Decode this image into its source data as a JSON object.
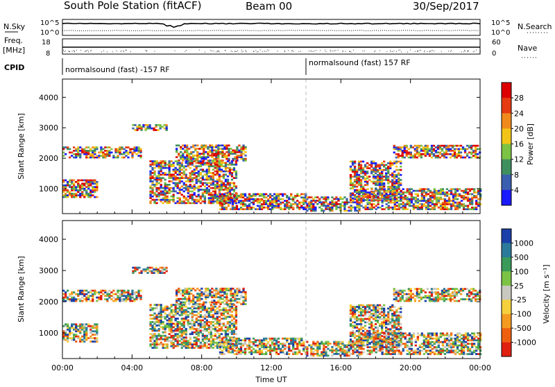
{
  "header": {
    "station": "South Pole Station (fitACF)",
    "beam": "Beam 00",
    "date": "30/Sep/2017"
  },
  "params": {
    "nsky_label": "N.Sky",
    "nsky_ticks": [
      "10^5",
      "10^0"
    ],
    "nsearch_label": "N.Search",
    "nsearch_ticks": [
      "10^5",
      "10^0"
    ],
    "freq_label": "Freq.",
    "freq_unit": "[MHz]",
    "freq_ticks": [
      "18",
      "8"
    ],
    "nave_label": "Nave",
    "nave_ticks": [
      "60",
      "0"
    ],
    "cpid_label": "CPID",
    "cpid_segments": [
      {
        "label": "normalsound (fast) -157 RF",
        "start_hour": 0
      },
      {
        "label": "normalsound (fast) 157 RF",
        "start_hour": 14
      }
    ]
  },
  "chart_data": [
    {
      "type": "heatmap",
      "name": "power",
      "xlabel": "",
      "ylabel": "Slant Range [km]",
      "xlim": [
        0,
        24
      ],
      "ylim": [
        180,
        4600
      ],
      "y_ticks": [
        "1000",
        "2000",
        "3000",
        "4000"
      ],
      "colorbar_label": "Power [dB]",
      "colorbar_ticks": [
        "4",
        "8",
        "12",
        "16",
        "20",
        "24",
        "28"
      ],
      "colorbar_range": [
        0,
        30
      ],
      "colors": [
        "#1a1aff",
        "#3a5fb0",
        "#3f8f5e",
        "#7cc244",
        "#f2c417",
        "#f08a1c",
        "#e53a12",
        "#dd0000"
      ],
      "echo_regions": [
        {
          "t0": 0.0,
          "t1": 4.5,
          "r0": 2000,
          "r1": 2350
        },
        {
          "t0": 4.0,
          "t1": 6.0,
          "r0": 2900,
          "r1": 3100
        },
        {
          "t0": 6.5,
          "t1": 10.5,
          "r0": 1900,
          "r1": 2400
        },
        {
          "t0": 0.0,
          "t1": 2.0,
          "r0": 700,
          "r1": 1300
        },
        {
          "t0": 5.0,
          "t1": 10.0,
          "r0": 500,
          "r1": 1900
        },
        {
          "t0": 9.0,
          "t1": 14.0,
          "r0": 300,
          "r1": 800
        },
        {
          "t0": 14.0,
          "t1": 17.0,
          "r0": 250,
          "r1": 700
        },
        {
          "t0": 16.5,
          "t1": 19.5,
          "r0": 600,
          "r1": 1900
        },
        {
          "t0": 17.0,
          "t1": 24.0,
          "r0": 300,
          "r1": 1000
        },
        {
          "t0": 19.0,
          "t1": 24.0,
          "r0": 2000,
          "r1": 2400
        }
      ]
    },
    {
      "type": "heatmap",
      "name": "velocity",
      "xlabel": "Time UT",
      "ylabel": "Slant Range [km]",
      "xlim": [
        0,
        24
      ],
      "ylim": [
        180,
        4600
      ],
      "x_ticks": [
        "00:00",
        "04:00",
        "08:00",
        "12:00",
        "16:00",
        "20:00",
        "00:00"
      ],
      "y_ticks": [
        "1000",
        "2000",
        "3000",
        "4000"
      ],
      "colorbar_label": "Velocity [m s⁻¹]",
      "colorbar_ticks": [
        "1000",
        "500",
        "100",
        "25",
        "-25",
        "-100",
        "-500",
        "-1000"
      ],
      "colors": [
        "#1a3fa8",
        "#2c7a9a",
        "#3a9a5a",
        "#7cc244",
        "#c8c8c0",
        "#f5d03c",
        "#f59a20",
        "#ee6010",
        "#e02010"
      ],
      "echo_regions": [
        {
          "t0": 0.0,
          "t1": 4.5,
          "r0": 2000,
          "r1": 2350
        },
        {
          "t0": 4.0,
          "t1": 6.0,
          "r0": 2900,
          "r1": 3100
        },
        {
          "t0": 6.5,
          "t1": 10.5,
          "r0": 1900,
          "r1": 2400
        },
        {
          "t0": 0.0,
          "t1": 2.0,
          "r0": 700,
          "r1": 1300
        },
        {
          "t0": 5.0,
          "t1": 10.0,
          "r0": 500,
          "r1": 1900
        },
        {
          "t0": 9.0,
          "t1": 14.0,
          "r0": 300,
          "r1": 800
        },
        {
          "t0": 14.0,
          "t1": 17.0,
          "r0": 250,
          "r1": 700
        },
        {
          "t0": 16.5,
          "t1": 19.5,
          "r0": 600,
          "r1": 1900
        },
        {
          "t0": 17.0,
          "t1": 24.0,
          "r0": 300,
          "r1": 1000
        },
        {
          "t0": 19.0,
          "t1": 24.0,
          "r0": 2000,
          "r1": 2400
        }
      ]
    }
  ]
}
